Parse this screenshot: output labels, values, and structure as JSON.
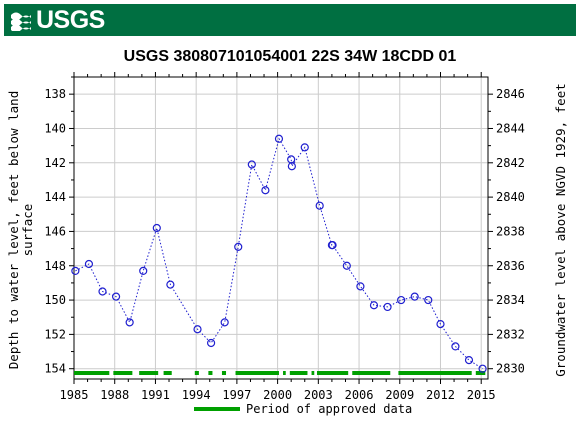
{
  "header": {
    "logo_text": "USGS",
    "brand_color": "#006f41"
  },
  "chart_data": {
    "type": "scatter",
    "title": "USGS 380807101054001 22S 34W 18CDD 01",
    "ylabel_left": [
      "Depth to water level, feet below land",
      "surface"
    ],
    "ylabel_right": "Groundwater level above NGVD 1929, feet",
    "xlabel": "",
    "xlim": [
      1985,
      2015.5
    ],
    "ylim_left": [
      137,
      154.6
    ],
    "ylim_right": [
      2847,
      2829.4
    ],
    "x_ticks": [
      1985,
      1988,
      1991,
      1994,
      1997,
      2000,
      2003,
      2006,
      2009,
      2012,
      2015
    ],
    "y_ticks_left": [
      138,
      140,
      142,
      144,
      146,
      148,
      150,
      152,
      154
    ],
    "y_ticks_right": [
      2846,
      2844,
      2842,
      2840,
      2838,
      2836,
      2834,
      2832,
      2830
    ],
    "grid": true,
    "series": [
      {
        "name": "",
        "color": "#1f1fcf",
        "line_style": "dotted",
        "marker": "open-circle",
        "x": [
          1985.1,
          1986.1,
          1987.1,
          1988.1,
          1989.1,
          1990.1,
          1991.1,
          1992.1,
          1994.1,
          1995.1,
          1996.1,
          1997.1,
          1998.1,
          1999.1,
          2000.1,
          2001.0,
          2001.05,
          2002.0,
          2003.1,
          2004.0,
          2004.05,
          2005.1,
          2006.1,
          2007.1,
          2008.1,
          2009.1,
          2010.1,
          2011.1,
          2012.0,
          2013.1,
          2014.1,
          2015.1
        ],
        "y": [
          148.3,
          147.9,
          149.5,
          149.8,
          151.3,
          148.3,
          145.8,
          149.1,
          151.7,
          152.5,
          151.3,
          146.9,
          142.1,
          143.6,
          140.6,
          141.8,
          142.2,
          141.1,
          144.5,
          146.8,
          146.8,
          148.0,
          149.2,
          150.3,
          150.4,
          150.0,
          149.8,
          150.0,
          151.4,
          152.7,
          153.5,
          154.0
        ]
      }
    ],
    "approved_periods": [
      [
        1985,
        1987.6
      ],
      [
        1987.9,
        1989.3
      ],
      [
        1989.8,
        1991.2
      ],
      [
        1991.6,
        1992.2
      ],
      [
        1993.9,
        1994.2
      ],
      [
        1994.9,
        1995.2
      ],
      [
        1995.9,
        1996.2
      ],
      [
        1996.9,
        2000.1
      ],
      [
        2000.4,
        2000.6
      ],
      [
        2000.9,
        2002.2
      ],
      [
        2002.5,
        2002.7
      ],
      [
        2002.9,
        2005.2
      ],
      [
        2005.5,
        2008.3
      ],
      [
        2008.9,
        2014.3
      ],
      [
        2014.6,
        2015.3
      ]
    ],
    "legend": {
      "label": "Period of approved data",
      "color": "#00a000",
      "placement": "bottom-center"
    }
  }
}
